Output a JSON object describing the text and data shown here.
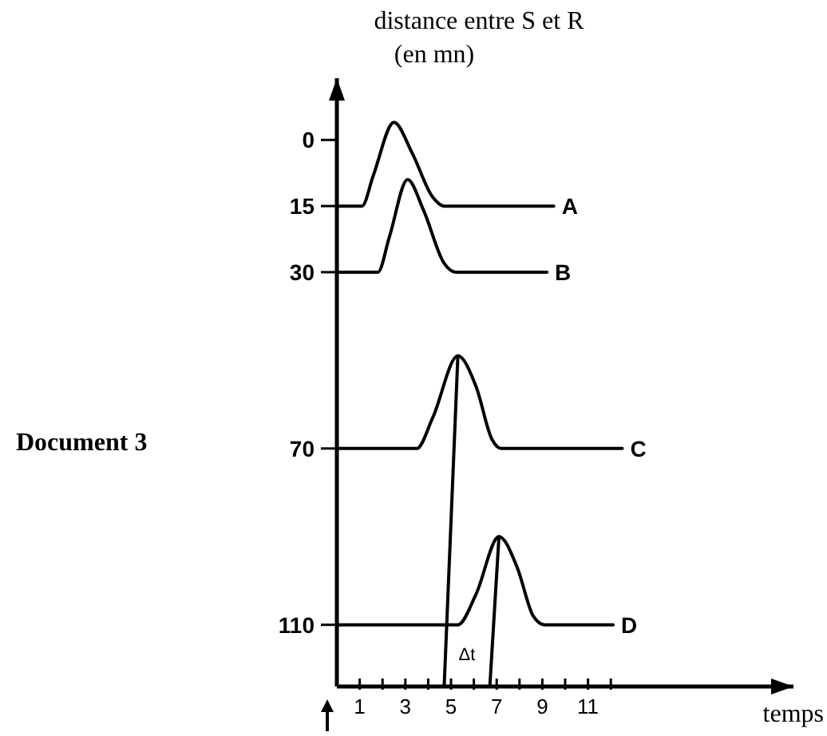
{
  "chart_data": {
    "type": "line",
    "ylabel": "distance entre S et R\n(en mn)",
    "xlabel": "temps",
    "xlim": [
      0,
      20
    ],
    "ylim": [
      124,
      -14
    ],
    "xticks": [
      1,
      {
        "value": 2,
        "label": null
      },
      3,
      {
        "value": 4,
        "label": null
      },
      5,
      {
        "value": 6,
        "label": null
      },
      7,
      {
        "value": 8,
        "label": null
      },
      9,
      {
        "value": 10,
        "label": null
      },
      11,
      {
        "value": 12,
        "label": null
      }
    ],
    "yticks": [
      0,
      15,
      30,
      70,
      110
    ],
    "marker": "none",
    "line_style": "solid",
    "grid": false,
    "series": [
      {
        "name": "A",
        "color": "#000000",
        "x": [
          0,
          1.1,
          1.6,
          2.5,
          3.3,
          4.2,
          4.7,
          9.5
        ],
        "values": [
          15,
          15,
          8,
          -4,
          3,
          13,
          15,
          15
        ]
      },
      {
        "name": "B",
        "color": "#000000",
        "x": [
          0,
          1.8,
          2.3,
          3.1,
          3.8,
          4.7,
          5.2,
          9.2
        ],
        "values": [
          30,
          30,
          22,
          9,
          16,
          28,
          30,
          30
        ]
      },
      {
        "name": "C",
        "color": "#000000",
        "x": [
          0,
          3.5,
          4.2,
          5.3,
          6.1,
          6.8,
          7.2,
          12.5
        ],
        "values": [
          70,
          70,
          63,
          49,
          56,
          68,
          70,
          70
        ]
      },
      {
        "name": "D",
        "color": "#000000",
        "x": [
          0,
          5.3,
          6.1,
          7.1,
          7.9,
          8.6,
          9.1,
          12.1
        ],
        "values": [
          110,
          110,
          103,
          90,
          97,
          108,
          110,
          110
        ]
      },
      {
        "color": "#000000",
        "x": [
          5.3,
          4.7
        ],
        "values": [
          49,
          124
        ]
      },
      {
        "color": "#000000",
        "x": [
          7.1,
          6.7
        ],
        "values": [
          90,
          124
        ]
      }
    ],
    "annotations": [
      "Document 3",
      "Δt"
    ]
  }
}
